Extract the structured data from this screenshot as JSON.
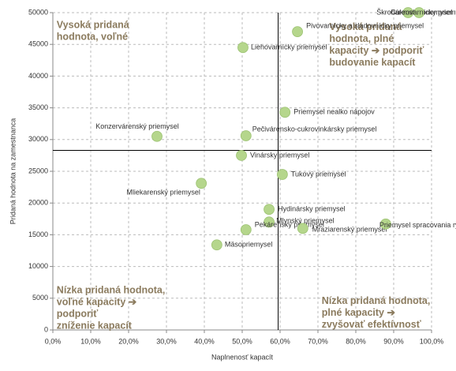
{
  "chart_data": {
    "type": "scatter",
    "x_label": "Naplnenosť kapacít",
    "y_label": "Pridaná hodnota na zamestnanca",
    "point_labels": [
      "Konzervárenský priemysel",
      "Mliekarenský priemysel",
      "Liehovarnícky priemysel",
      "Pivovarnícky a sladovnícky priemysel",
      "Vinársky priemysel",
      "Pečivárensko-cukrovinkársky priemysel",
      "Priemysel nealko nápojov",
      "Tukový priemysel",
      "Hydinársky priemysel",
      "Mlynský priemysel",
      "Pekárenský priemysel",
      "Mäsopriemysel",
      "Mraziarenský priemysel",
      "Priemysel spracovania rýb",
      "Škrobárenský priemysel",
      "Cukrovarnícky priemysel"
    ],
    "x": [
      27.5,
      39.2,
      50.2,
      64.6,
      49.8,
      51.0,
      61.3,
      60.6,
      57.1,
      57.1,
      51.0,
      43.3,
      66.0,
      87.9,
      93.8,
      96.7
    ],
    "values": [
      30500,
      23100,
      44500,
      47000,
      27500,
      30600,
      34300,
      24500,
      19000,
      17000,
      15800,
      13400,
      16000,
      16700,
      50000,
      50000
    ],
    "color": "#b5d68c",
    "xlim": [
      0,
      100
    ],
    "ylim": [
      0,
      50000
    ],
    "xticks": [
      {
        "value": 0,
        "label": "0,0%"
      },
      {
        "value": 10,
        "label": "10,0%"
      },
      {
        "value": 20,
        "label": "20,0%"
      },
      {
        "value": 30,
        "label": "30,0%"
      },
      {
        "value": 40,
        "label": "40,0%"
      },
      {
        "value": 50,
        "label": "50,0%"
      },
      {
        "value": 60,
        "label": "60,0%"
      },
      {
        "value": 70,
        "label": "70,0%"
      },
      {
        "value": 80,
        "label": "80,0%"
      },
      {
        "value": 90,
        "label": "90,0%"
      },
      {
        "value": 100,
        "label": "100,0%"
      }
    ],
    "yticks": [
      0,
      5000,
      10000,
      15000,
      20000,
      25000,
      30000,
      35000,
      40000,
      45000,
      50000
    ],
    "grid": true,
    "reference_x": 59.5,
    "reference_y": 28300,
    "annotations": [
      {
        "lines": [
          "Vysoká pridaná",
          "hodnota, voľné"
        ],
        "x": 1,
        "y": 48000
      },
      {
        "lines": [
          "Vysoká pridaná",
          "hodnota, plné",
          "kapacity ➔ podporiť",
          "budovanie kapacít"
        ],
        "x": 73,
        "y": 47700
      },
      {
        "lines": [
          "Nízka pridaná hodnota,",
          "voľné kapacity ➔",
          "podporiť",
          "zníženie kapacít"
        ],
        "x": 1,
        "y": 6200
      },
      {
        "lines": [
          "Nízka pridaná hodnota,",
          "plné kapacity ➔",
          "zvyšovať efektívnosť"
        ],
        "x": 71,
        "y": 4500
      }
    ]
  }
}
